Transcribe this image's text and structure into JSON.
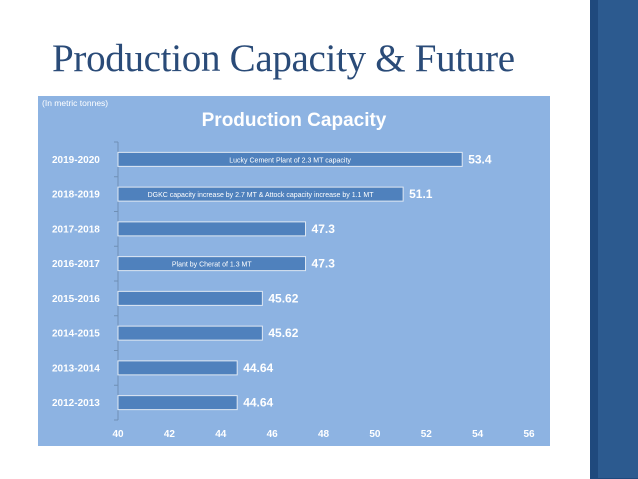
{
  "slide": {
    "title": "Production Capacity & Future"
  },
  "colors": {
    "chart_bg": "#8db3e2",
    "bar_fill": "#4f81bd",
    "title_text": "#2a4b78",
    "side_bar": "#1f497d"
  },
  "chart_data": {
    "type": "bar",
    "orientation": "horizontal",
    "title": "Production Capacity",
    "unit_note": "(In metric tonnes)",
    "categories": [
      "2012-2013",
      "2013-2014",
      "2014-2015",
      "2015-2016",
      "2016-2017",
      "2017-2018",
      "2018-2019",
      "2019-2020"
    ],
    "values": [
      44.64,
      44.64,
      45.62,
      45.62,
      47.3,
      47.3,
      51.1,
      53.4
    ],
    "value_labels": [
      "44.64",
      "44.64",
      "45.62",
      "45.62",
      "47.3",
      "47.3",
      "51.1",
      "53.4"
    ],
    "bar_annotations": [
      "",
      "",
      "",
      "",
      "Plant by Cherat of 1.3 MT",
      "",
      "DGKC capacity increase by 2.7 MT & Attock capacity increase by 1.1 MT",
      "Lucky Cement Plant of 2.3 MT capacity"
    ],
    "xlim": [
      40,
      56
    ],
    "x_ticks": [
      "40",
      "42",
      "44",
      "46",
      "48",
      "50",
      "52",
      "54",
      "56"
    ],
    "grid": false,
    "legend": "none"
  }
}
